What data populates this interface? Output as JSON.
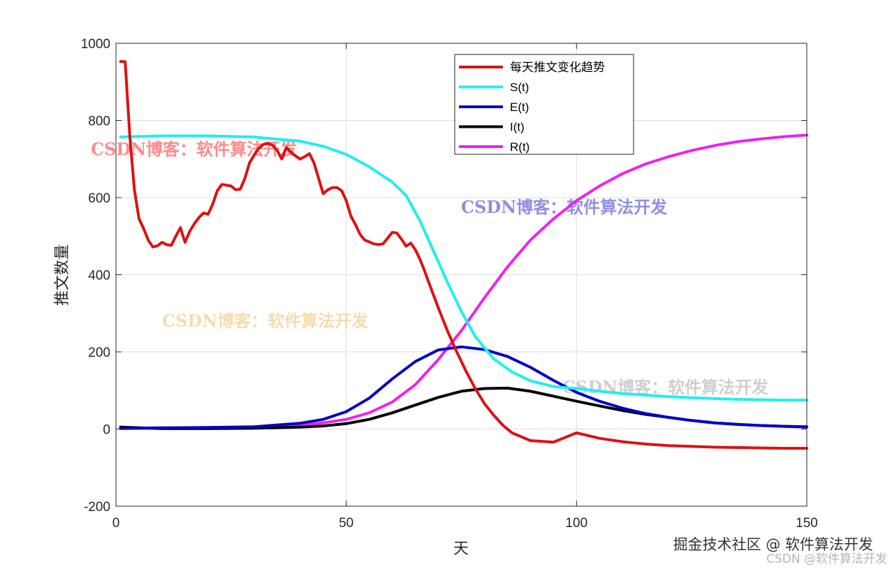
{
  "chart_data": {
    "type": "line",
    "xlabel": "天",
    "ylabel": "推文数量",
    "xlim": [
      0,
      150
    ],
    "ylim": [
      -200,
      1000
    ],
    "xticks": [
      0,
      50,
      100,
      150
    ],
    "yticks": [
      -200,
      0,
      200,
      400,
      600,
      800,
      1000
    ],
    "grid": true,
    "legend_position": "top-center",
    "series": [
      {
        "name": "每天推文变化趋势",
        "color": "#dd1111",
        "points": [
          [
            1,
            953
          ],
          [
            2,
            952
          ],
          [
            3,
            760
          ],
          [
            4,
            620
          ],
          [
            5,
            545
          ],
          [
            6,
            520
          ],
          [
            7,
            490
          ],
          [
            8,
            472
          ],
          [
            9,
            475
          ],
          [
            10,
            484
          ],
          [
            11,
            478
          ],
          [
            12,
            476
          ],
          [
            13,
            500
          ],
          [
            14,
            522
          ],
          [
            15,
            484
          ],
          [
            16,
            512
          ],
          [
            17,
            532
          ],
          [
            18,
            548
          ],
          [
            19,
            560
          ],
          [
            20,
            557
          ],
          [
            21,
            583
          ],
          [
            22,
            618
          ],
          [
            23,
            634
          ],
          [
            24,
            632
          ],
          [
            25,
            630
          ],
          [
            26,
            620
          ],
          [
            27,
            622
          ],
          [
            28,
            650
          ],
          [
            29,
            690
          ],
          [
            30,
            710
          ],
          [
            31,
            728
          ],
          [
            32,
            738
          ],
          [
            33,
            740
          ],
          [
            34,
            736
          ],
          [
            35,
            722
          ],
          [
            36,
            700
          ],
          [
            37,
            730
          ],
          [
            38,
            718
          ],
          [
            39,
            708
          ],
          [
            40,
            700
          ],
          [
            41,
            706
          ],
          [
            42,
            714
          ],
          [
            43,
            690
          ],
          [
            44,
            650
          ],
          [
            45,
            610
          ],
          [
            46,
            620
          ],
          [
            47,
            626
          ],
          [
            48,
            626
          ],
          [
            49,
            618
          ],
          [
            50,
            592
          ],
          [
            51,
            552
          ],
          [
            52,
            530
          ],
          [
            53,
            505
          ],
          [
            54,
            490
          ],
          [
            55,
            485
          ],
          [
            56,
            480
          ],
          [
            57,
            478
          ],
          [
            58,
            480
          ],
          [
            59,
            495
          ],
          [
            60,
            510
          ],
          [
            61,
            508
          ],
          [
            62,
            492
          ],
          [
            63,
            474
          ],
          [
            64,
            482
          ],
          [
            65,
            465
          ],
          [
            66,
            440
          ],
          [
            67,
            410
          ],
          [
            68,
            378
          ],
          [
            69,
            346
          ],
          [
            70,
            314
          ],
          [
            72,
            254
          ],
          [
            74,
            200
          ],
          [
            76,
            150
          ],
          [
            78,
            105
          ],
          [
            80,
            66
          ],
          [
            82,
            36
          ],
          [
            84,
            10
          ],
          [
            86,
            -10
          ],
          [
            88,
            -20
          ],
          [
            90,
            -30
          ],
          [
            95,
            -34
          ],
          [
            100,
            -10
          ],
          [
            105,
            -24
          ],
          [
            110,
            -33
          ],
          [
            115,
            -39
          ],
          [
            120,
            -43
          ],
          [
            125,
            -45
          ],
          [
            130,
            -47
          ],
          [
            135,
            -48
          ],
          [
            140,
            -49
          ],
          [
            145,
            -50
          ],
          [
            150,
            -50
          ]
        ]
      },
      {
        "name": "S(t)",
        "color": "#22eeee",
        "points": [
          [
            1,
            757
          ],
          [
            10,
            760
          ],
          [
            20,
            760
          ],
          [
            30,
            757
          ],
          [
            40,
            746
          ],
          [
            45,
            733
          ],
          [
            50,
            712
          ],
          [
            55,
            680
          ],
          [
            60,
            640
          ],
          [
            63,
            605
          ],
          [
            66,
            540
          ],
          [
            69,
            460
          ],
          [
            72,
            380
          ],
          [
            75,
            305
          ],
          [
            78,
            240
          ],
          [
            82,
            182
          ],
          [
            86,
            148
          ],
          [
            90,
            125
          ],
          [
            95,
            110
          ],
          [
            100,
            105
          ],
          [
            105,
            98
          ],
          [
            110,
            92
          ],
          [
            115,
            88
          ],
          [
            120,
            84
          ],
          [
            125,
            81
          ],
          [
            130,
            79
          ],
          [
            135,
            77
          ],
          [
            140,
            76
          ],
          [
            145,
            75
          ],
          [
            150,
            75
          ]
        ]
      },
      {
        "name": "E(t)",
        "color": "#0000c8",
        "points": [
          [
            1,
            2
          ],
          [
            10,
            3
          ],
          [
            20,
            4
          ],
          [
            30,
            6
          ],
          [
            40,
            15
          ],
          [
            45,
            25
          ],
          [
            50,
            45
          ],
          [
            55,
            80
          ],
          [
            60,
            130
          ],
          [
            65,
            175
          ],
          [
            70,
            205
          ],
          [
            75,
            213
          ],
          [
            80,
            206
          ],
          [
            85,
            188
          ],
          [
            90,
            160
          ],
          [
            95,
            126
          ],
          [
            100,
            95
          ],
          [
            105,
            72
          ],
          [
            110,
            54
          ],
          [
            115,
            40
          ],
          [
            120,
            30
          ],
          [
            125,
            22
          ],
          [
            130,
            16
          ],
          [
            135,
            12
          ],
          [
            140,
            9
          ],
          [
            145,
            7
          ],
          [
            150,
            5
          ]
        ]
      },
      {
        "name": "I(t)",
        "color": "#000000",
        "points": [
          [
            1,
            5
          ],
          [
            10,
            1
          ],
          [
            20,
            1
          ],
          [
            30,
            2
          ],
          [
            40,
            5
          ],
          [
            45,
            8
          ],
          [
            50,
            14
          ],
          [
            55,
            25
          ],
          [
            60,
            42
          ],
          [
            65,
            62
          ],
          [
            70,
            82
          ],
          [
            75,
            98
          ],
          [
            80,
            105
          ],
          [
            85,
            106
          ],
          [
            90,
            98
          ],
          [
            95,
            85
          ],
          [
            100,
            72
          ],
          [
            105,
            60
          ],
          [
            110,
            48
          ],
          [
            115,
            38
          ],
          [
            120,
            30
          ],
          [
            125,
            22
          ],
          [
            130,
            16
          ],
          [
            135,
            12
          ],
          [
            140,
            9
          ],
          [
            145,
            7
          ],
          [
            150,
            6
          ]
        ]
      },
      {
        "name": "R(t)",
        "color": "#ee22ee",
        "points": [
          [
            1,
            1
          ],
          [
            10,
            2
          ],
          [
            20,
            3
          ],
          [
            30,
            5
          ],
          [
            40,
            10
          ],
          [
            45,
            16
          ],
          [
            50,
            25
          ],
          [
            55,
            42
          ],
          [
            60,
            70
          ],
          [
            65,
            115
          ],
          [
            70,
            180
          ],
          [
            75,
            255
          ],
          [
            80,
            340
          ],
          [
            85,
            420
          ],
          [
            90,
            490
          ],
          [
            95,
            545
          ],
          [
            100,
            592
          ],
          [
            105,
            630
          ],
          [
            110,
            662
          ],
          [
            115,
            687
          ],
          [
            120,
            706
          ],
          [
            125,
            722
          ],
          [
            130,
            735
          ],
          [
            135,
            745
          ],
          [
            140,
            752
          ],
          [
            145,
            758
          ],
          [
            150,
            762
          ]
        ]
      }
    ],
    "watermarks": [
      {
        "text": "CSDN博客：软件算法开发",
        "color": "#ff8a8a"
      },
      {
        "text": "CSDN博客：软件算法开发",
        "color": "#8f8fe6"
      },
      {
        "text": "CSDN博客：软件算法开发",
        "color": "#f4dcae"
      },
      {
        "text": "CSDN博客：软件算法开发",
        "color": "#cfcfcf"
      }
    ]
  },
  "footer": {
    "credit": "掘金技术社区 @ 软件算法开发",
    "credit2": "CSDN @软件算法开发"
  }
}
